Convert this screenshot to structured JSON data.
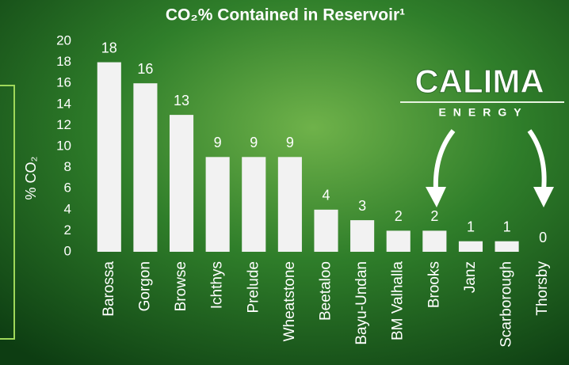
{
  "chart_data": {
    "type": "bar",
    "title": "CO₂% Contained in Reservoir¹",
    "y_label": "% CO₂",
    "categories": [
      "Barossa",
      "Gorgon",
      "Browse",
      "Ichthys",
      "Prelude",
      "Wheatstone",
      "Beetaloo",
      "Bayu-Undan",
      "BM Valhalla",
      "Brooks",
      "Janz",
      "Scarborough",
      "Thorsby"
    ],
    "values": [
      18,
      16,
      13,
      9,
      9,
      9,
      4,
      3,
      2,
      2,
      1,
      1,
      0
    ],
    "color": "#f2f2f2",
    "ylim": [
      0,
      20
    ],
    "yticks": [
      0,
      2,
      4,
      6,
      8,
      10,
      12,
      14,
      16,
      18,
      20
    ],
    "grid": false
  },
  "logo": {
    "name": "CALIMA",
    "tagline": "ENERGY"
  }
}
